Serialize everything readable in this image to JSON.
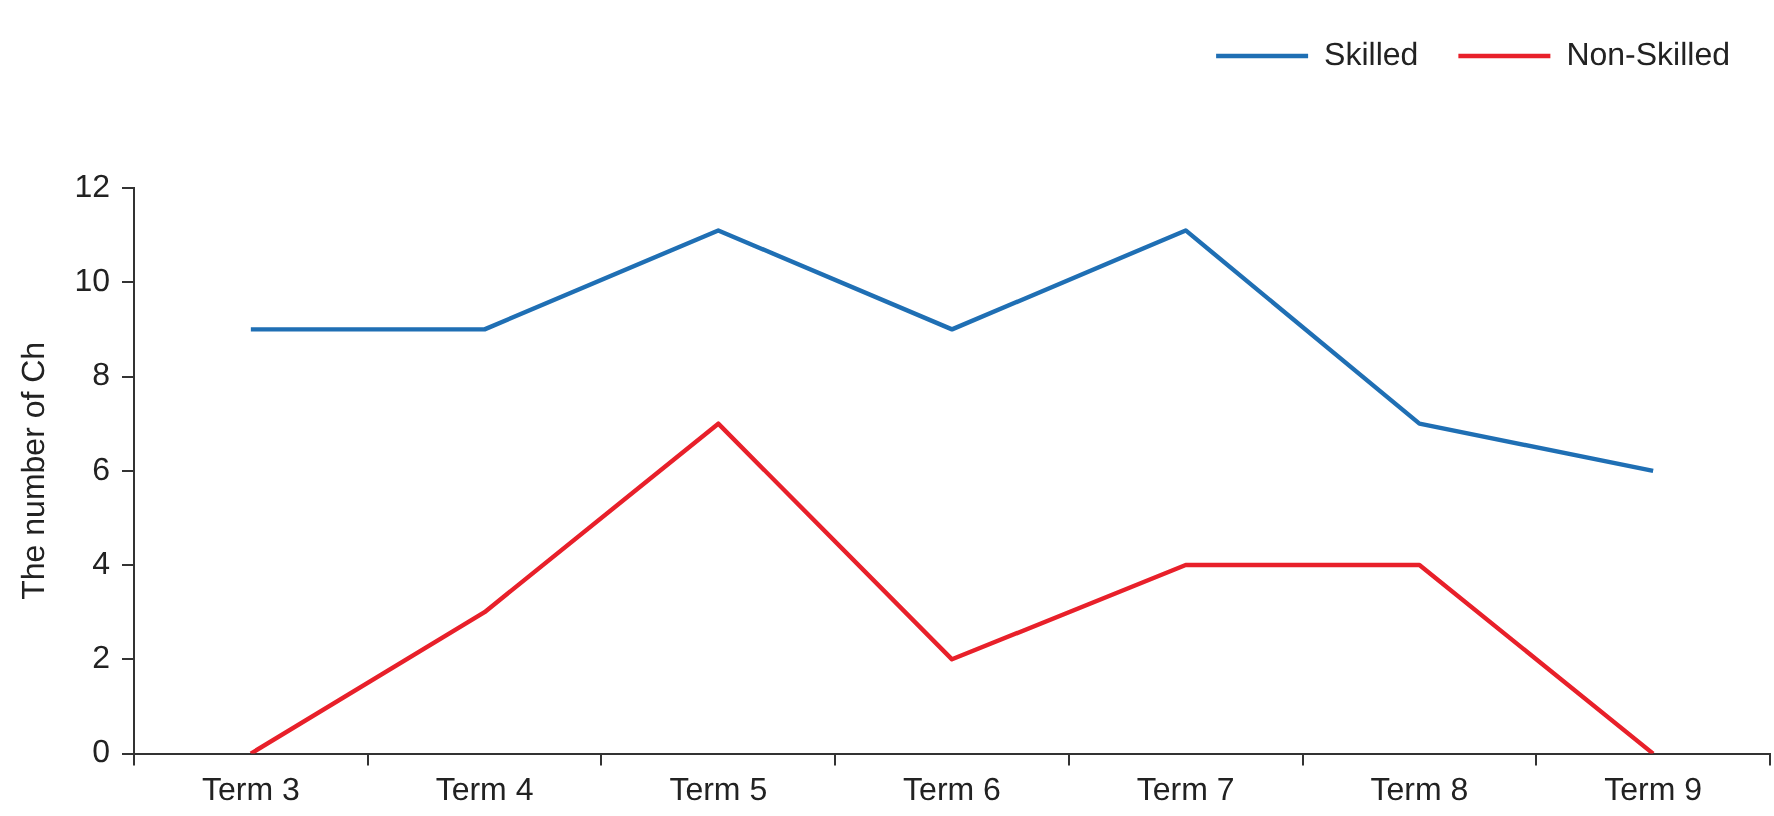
{
  "chart_data": {
    "type": "line",
    "ylabel": "The number of Ch",
    "categories": [
      "Term 3",
      "Term 4",
      "Term 5",
      "Term 6",
      "Term 7",
      "Term 8",
      "Term 9"
    ],
    "series": [
      {
        "name": "Skilled",
        "color": "#1f6fb4",
        "values": [
          9,
          9,
          11.1,
          9,
          11.1,
          7,
          6
        ]
      },
      {
        "name": "Non-Skilled",
        "color": "#e8202a",
        "values": [
          0,
          3,
          7,
          2,
          4,
          4,
          0
        ]
      }
    ],
    "ylim": [
      0,
      12
    ],
    "yticks": [
      0,
      2,
      4,
      6,
      8,
      10,
      12
    ],
    "grid": false,
    "legend": "top right",
    "marker": "none",
    "line_style": "solid"
  }
}
